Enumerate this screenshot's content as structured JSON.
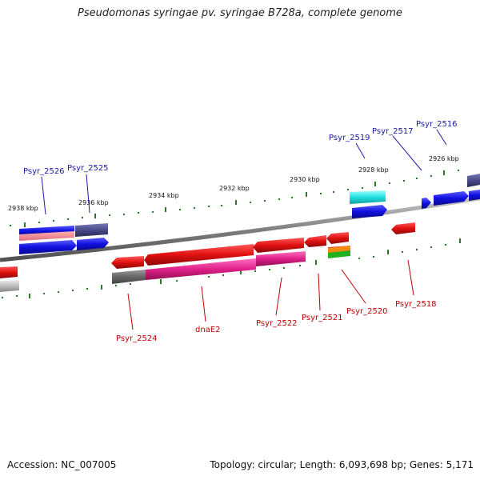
{
  "title": "Pseudomonas syringae pv. syringae B728a, complete genome",
  "footer": {
    "accession": "Accession: NC_007005",
    "topology": "Topology: circular; Length: 6,093,698 bp; Genes: 5,171"
  },
  "ticks": [
    {
      "label": "2938 kbp"
    },
    {
      "label": "2936 kbp"
    },
    {
      "label": "2934 kbp"
    },
    {
      "label": "2932 kbp"
    },
    {
      "label": "2930 kbp"
    },
    {
      "label": "2928 kbp"
    },
    {
      "label": "2926 kbp"
    }
  ],
  "genes_top": [
    {
      "label": "Psyr_2526"
    },
    {
      "label": "Psyr_2525"
    },
    {
      "label": "Psyr_2519"
    },
    {
      "label": "Psyr_2517"
    },
    {
      "label": "Psyr_2516"
    }
  ],
  "genes_bottom": [
    {
      "label": "Psyr_2524"
    },
    {
      "label": "dnaE2"
    },
    {
      "label": "Psyr_2522"
    },
    {
      "label": "Psyr_2521"
    },
    {
      "label": "Psyr_2520"
    },
    {
      "label": "Psyr_2518"
    }
  ],
  "colors": {
    "forward_cds": "#1010e0",
    "reverse_cds": "#e01010",
    "backbone": "#888888",
    "tick": "#2a7a2a",
    "magenta": "#e0208a",
    "purple": "#4a4a8a",
    "cyan": "#20e0e0",
    "orange": "#f08a10",
    "green": "#20b020"
  }
}
